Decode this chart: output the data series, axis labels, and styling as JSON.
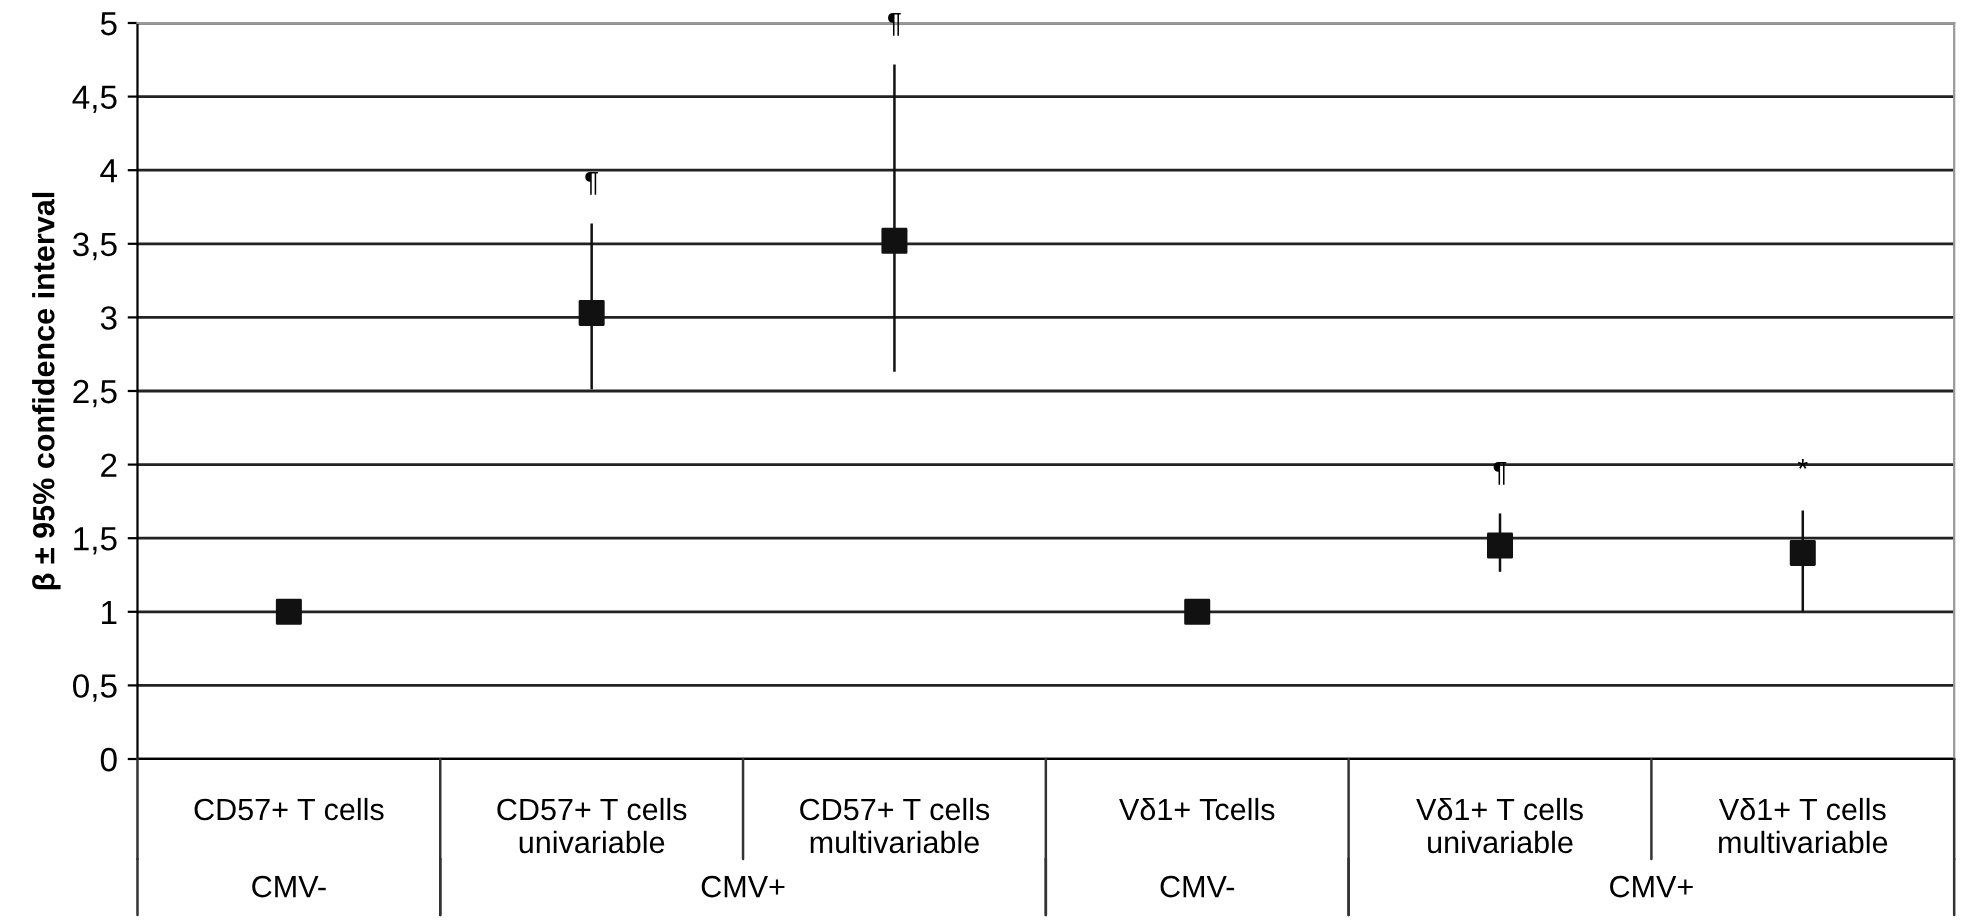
{
  "chart_data": {
    "type": "scatter",
    "ylabel": "β ± 95% confidence interval",
    "categories": [
      "CD57+ T cells",
      "CD57+ T cells\nunivariable",
      "CD57+ T cells\nmultivariable",
      "Vδ1+ Tcells",
      "Vδ1+ T cells\nunivariable",
      "Vδ1+ T cells\nmultivariable"
    ],
    "series": [
      {
        "color": "#111111",
        "values": [
          1,
          3.03,
          3.52,
          1,
          1.45,
          1.4
        ],
        "errors": [
          null,
          [
            2.52,
            3.63
          ],
          [
            2.64,
            4.71
          ],
          null,
          [
            1.28,
            1.66
          ],
          [
            1.01,
            1.68
          ]
        ]
      }
    ],
    "marker": "square",
    "grid": "y",
    "legend": false,
    "ylim": [
      0,
      5
    ],
    "yticks": [
      0,
      {
        "value": 0.5,
        "label": "0,5"
      },
      1,
      {
        "value": 1.5,
        "label": "1,5"
      },
      2,
      {
        "value": 2.5,
        "label": "2,5"
      },
      3,
      {
        "value": 3.5,
        "label": "3,5"
      },
      4,
      {
        "value": 4.5,
        "label": "4,5"
      },
      5
    ],
    "annotations": [
      {
        "text": "¶",
        "x": "CD57+ T cells\nunivariable",
        "y": 3.63
      },
      {
        "text": "¶",
        "x": "CD57+ T cells\nmultivariable",
        "y": 4.71
      },
      {
        "text": "¶",
        "x": "Vδ1+ T cells\nunivariable",
        "y": 1.66
      },
      {
        "text": "*",
        "x": "Vδ1+ T cells\nmultivariable",
        "y": 1.68
      },
      "CMV-",
      "CMV+",
      "CMV-",
      "CMV+"
    ]
  }
}
